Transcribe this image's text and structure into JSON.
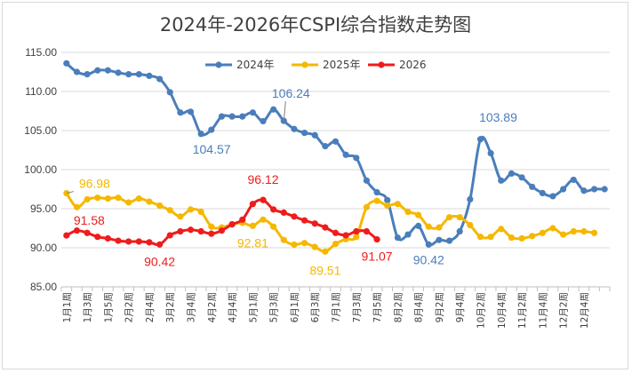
{
  "chart_data": {
    "type": "line",
    "title": "2024年-2026年CSPI综合指数走势图",
    "ylim": [
      85,
      115
    ],
    "yticks": [
      "85.00",
      "90.00",
      "95.00",
      "100.00",
      "105.00",
      "110.00",
      "115.00"
    ],
    "grid": true,
    "legend_position": "top",
    "x_labels": [
      "1月1周",
      "1月3周",
      "1月5周",
      "2月2周",
      "2月4周",
      "3月2周",
      "3月4周",
      "4月2周",
      "4月4周",
      "5月1周",
      "5月3周",
      "6月1周",
      "6月3周",
      "7月1周",
      "7月3周",
      "7月5周",
      "8月2周",
      "8月4周",
      "9月2周",
      "9月4周",
      "10月2周",
      "10月4周",
      "11月2周",
      "11月4周",
      "12月2周",
      "12月4周"
    ],
    "series": [
      {
        "name": "2024年",
        "color": "#4a7ebb",
        "values": [
          113.6,
          112.5,
          112.2,
          112.7,
          112.7,
          112.4,
          112.2,
          112.2,
          112.0,
          111.6,
          109.9,
          107.3,
          107.4,
          104.57,
          105.1,
          106.8,
          106.8,
          106.8,
          107.3,
          106.2,
          107.7,
          106.24,
          105.2,
          104.7,
          104.4,
          103.0,
          103.6,
          101.9,
          101.5,
          98.6,
          97.1,
          96.1,
          91.3,
          91.7,
          92.8,
          90.42,
          91.0,
          90.9,
          92.1,
          96.2,
          103.89,
          102.1,
          98.6,
          99.5,
          99.0,
          97.8,
          97.0,
          96.6,
          97.5,
          98.7,
          97.3,
          97.5,
          97.5
        ],
        "labels": [
          {
            "index": 13,
            "text": "104.57"
          },
          {
            "index": 21,
            "text": "106.24"
          },
          {
            "index": 35,
            "text": "90.42"
          },
          {
            "index": 40,
            "text": "103.89"
          }
        ]
      },
      {
        "name": "2025年",
        "color": "#f5b800",
        "values": [
          96.98,
          95.2,
          96.2,
          96.4,
          96.3,
          96.4,
          95.8,
          96.3,
          95.9,
          95.4,
          94.8,
          94.0,
          94.9,
          94.6,
          92.7,
          92.6,
          93.0,
          93.2,
          92.81,
          93.6,
          92.7,
          91.0,
          90.4,
          90.6,
          90.1,
          89.51,
          90.5,
          91.1,
          91.4,
          95.2,
          96.0,
          95.4,
          95.6,
          94.6,
          94.2,
          92.7,
          92.6,
          93.9,
          93.9,
          92.9,
          91.4,
          91.4,
          92.4,
          91.3,
          91.2,
          91.5,
          91.9,
          92.5,
          91.7,
          92.1,
          92.1,
          91.9
        ],
        "labels": [
          {
            "index": 0,
            "text": "96.98"
          },
          {
            "index": 18,
            "text": "92.81"
          },
          {
            "index": 25,
            "text": "89.51"
          }
        ]
      },
      {
        "name": "2026",
        "color": "#ee1c1c",
        "values": [
          91.58,
          92.2,
          91.9,
          91.4,
          91.2,
          90.9,
          90.8,
          90.8,
          90.7,
          90.42,
          91.6,
          92.1,
          92.3,
          92.1,
          91.8,
          92.2,
          93.0,
          93.6,
          95.6,
          96.12,
          94.9,
          94.5,
          94.0,
          93.5,
          93.1,
          92.6,
          91.9,
          91.6,
          92.1,
          92.1,
          91.07
        ],
        "labels": [
          {
            "index": 0,
            "text": "91.58"
          },
          {
            "index": 9,
            "text": "90.42"
          },
          {
            "index": 19,
            "text": "96.12"
          },
          {
            "index": 30,
            "text": "91.07"
          }
        ]
      }
    ]
  }
}
